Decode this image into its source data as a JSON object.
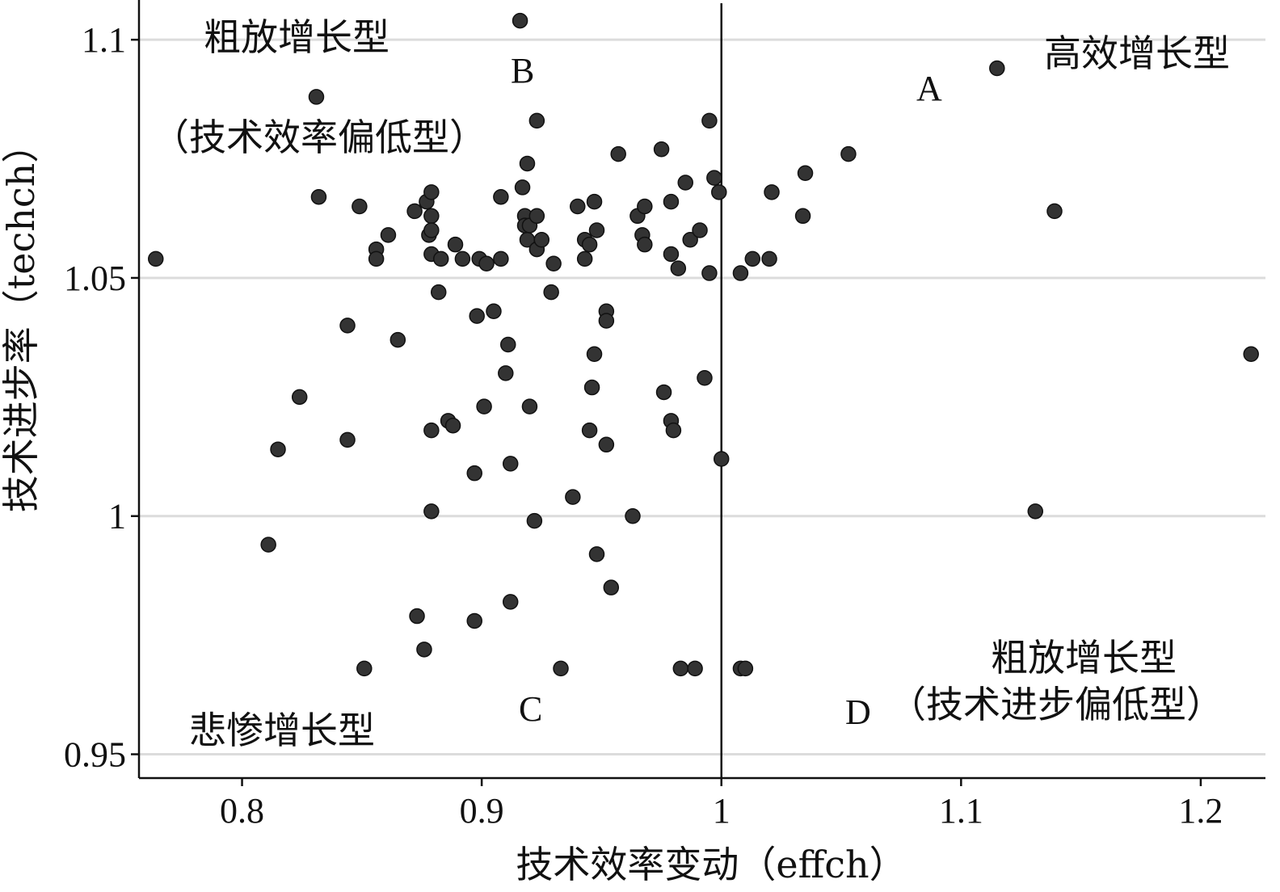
{
  "chart_data": {
    "type": "scatter",
    "xlabel": "技术效率变动（effch）",
    "ylabel": "技术进步率（techch）",
    "xlim": [
      0.757,
      1.227
    ],
    "ylim": [
      0.945,
      1.108
    ],
    "x_ticks": [
      {
        "value": 0.8,
        "label": "0.8"
      },
      {
        "value": 0.9,
        "label": "0.9"
      },
      {
        "value": 1.0,
        "label": "1"
      },
      {
        "value": 1.1,
        "label": "1.1"
      },
      {
        "value": 1.2,
        "label": "1.2"
      }
    ],
    "y_ticks": [
      {
        "value": 0.95,
        "label": "0.95"
      },
      {
        "value": 1.0,
        "label": "1"
      },
      {
        "value": 1.05,
        "label": "1.05"
      },
      {
        "value": 1.1,
        "label": "1.1"
      }
    ],
    "grid": "horizontal",
    "reference_line_x": 1.0,
    "marker_color": "#333333",
    "points": [
      {
        "x": 0.764,
        "y": 1.054
      },
      {
        "x": 0.811,
        "y": 0.994
      },
      {
        "x": 0.815,
        "y": 1.014
      },
      {
        "x": 0.824,
        "y": 1.025
      },
      {
        "x": 0.831,
        "y": 1.088
      },
      {
        "x": 0.832,
        "y": 1.067
      },
      {
        "x": 0.844,
        "y": 1.04
      },
      {
        "x": 0.844,
        "y": 1.016
      },
      {
        "x": 0.849,
        "y": 1.065
      },
      {
        "x": 0.851,
        "y": 0.968
      },
      {
        "x": 0.856,
        "y": 1.056
      },
      {
        "x": 0.856,
        "y": 1.054
      },
      {
        "x": 0.861,
        "y": 1.059
      },
      {
        "x": 0.865,
        "y": 1.037
      },
      {
        "x": 0.872,
        "y": 1.064
      },
      {
        "x": 0.873,
        "y": 0.979
      },
      {
        "x": 0.876,
        "y": 0.972
      },
      {
        "x": 0.877,
        "y": 1.066
      },
      {
        "x": 0.878,
        "y": 1.059
      },
      {
        "x": 0.879,
        "y": 1.068
      },
      {
        "x": 0.879,
        "y": 1.063
      },
      {
        "x": 0.879,
        "y": 1.06
      },
      {
        "x": 0.879,
        "y": 1.055
      },
      {
        "x": 0.879,
        "y": 1.018
      },
      {
        "x": 0.879,
        "y": 1.001
      },
      {
        "x": 0.882,
        "y": 1.047
      },
      {
        "x": 0.883,
        "y": 1.054
      },
      {
        "x": 0.886,
        "y": 1.02
      },
      {
        "x": 0.888,
        "y": 1.019
      },
      {
        "x": 0.889,
        "y": 1.057
      },
      {
        "x": 0.892,
        "y": 1.054
      },
      {
        "x": 0.897,
        "y": 1.009
      },
      {
        "x": 0.897,
        "y": 0.978
      },
      {
        "x": 0.898,
        "y": 1.042
      },
      {
        "x": 0.899,
        "y": 1.054
      },
      {
        "x": 0.901,
        "y": 1.023
      },
      {
        "x": 0.902,
        "y": 1.053
      },
      {
        "x": 0.905,
        "y": 1.043
      },
      {
        "x": 0.908,
        "y": 1.067
      },
      {
        "x": 0.908,
        "y": 1.054
      },
      {
        "x": 0.91,
        "y": 1.03
      },
      {
        "x": 0.911,
        "y": 1.036
      },
      {
        "x": 0.912,
        "y": 1.011
      },
      {
        "x": 0.912,
        "y": 0.982
      },
      {
        "x": 0.916,
        "y": 1.104
      },
      {
        "x": 0.917,
        "y": 1.069
      },
      {
        "x": 0.918,
        "y": 1.063
      },
      {
        "x": 0.918,
        "y": 1.061
      },
      {
        "x": 0.919,
        "y": 1.074
      },
      {
        "x": 0.919,
        "y": 1.058
      },
      {
        "x": 0.92,
        "y": 1.023
      },
      {
        "x": 0.92,
        "y": 1.061
      },
      {
        "x": 0.922,
        "y": 0.999
      },
      {
        "x": 0.923,
        "y": 1.063
      },
      {
        "x": 0.923,
        "y": 1.056
      },
      {
        "x": 0.923,
        "y": 1.083
      },
      {
        "x": 0.925,
        "y": 1.058
      },
      {
        "x": 0.929,
        "y": 1.047
      },
      {
        "x": 0.93,
        "y": 1.053
      },
      {
        "x": 0.933,
        "y": 0.968
      },
      {
        "x": 0.938,
        "y": 1.004
      },
      {
        "x": 0.94,
        "y": 1.065
      },
      {
        "x": 0.943,
        "y": 1.058
      },
      {
        "x": 0.943,
        "y": 1.054
      },
      {
        "x": 0.945,
        "y": 1.057
      },
      {
        "x": 0.945,
        "y": 1.018
      },
      {
        "x": 0.946,
        "y": 1.027
      },
      {
        "x": 0.947,
        "y": 1.034
      },
      {
        "x": 0.947,
        "y": 1.066
      },
      {
        "x": 0.948,
        "y": 1.06
      },
      {
        "x": 0.948,
        "y": 0.992
      },
      {
        "x": 0.952,
        "y": 1.043
      },
      {
        "x": 0.952,
        "y": 1.041
      },
      {
        "x": 0.952,
        "y": 1.015
      },
      {
        "x": 0.954,
        "y": 0.985
      },
      {
        "x": 0.957,
        "y": 1.076
      },
      {
        "x": 0.963,
        "y": 1.0
      },
      {
        "x": 0.965,
        "y": 1.063
      },
      {
        "x": 0.967,
        "y": 1.059
      },
      {
        "x": 0.968,
        "y": 1.065
      },
      {
        "x": 0.968,
        "y": 1.057
      },
      {
        "x": 0.975,
        "y": 1.077
      },
      {
        "x": 0.976,
        "y": 1.026
      },
      {
        "x": 0.979,
        "y": 1.066
      },
      {
        "x": 0.979,
        "y": 1.055
      },
      {
        "x": 0.979,
        "y": 1.02
      },
      {
        "x": 0.98,
        "y": 1.018
      },
      {
        "x": 0.982,
        "y": 1.052
      },
      {
        "x": 0.983,
        "y": 0.968
      },
      {
        "x": 0.985,
        "y": 1.07
      },
      {
        "x": 0.987,
        "y": 1.058
      },
      {
        "x": 0.989,
        "y": 0.968
      },
      {
        "x": 0.991,
        "y": 1.06
      },
      {
        "x": 0.993,
        "y": 1.029
      },
      {
        "x": 0.995,
        "y": 1.083
      },
      {
        "x": 0.995,
        "y": 1.051
      },
      {
        "x": 0.997,
        "y": 1.071
      },
      {
        "x": 0.999,
        "y": 1.068
      },
      {
        "x": 1.0,
        "y": 1.012
      },
      {
        "x": 1.008,
        "y": 0.968
      },
      {
        "x": 1.008,
        "y": 1.051
      },
      {
        "x": 1.01,
        "y": 0.968
      },
      {
        "x": 1.013,
        "y": 1.054
      },
      {
        "x": 1.02,
        "y": 1.054
      },
      {
        "x": 1.021,
        "y": 1.068
      },
      {
        "x": 1.034,
        "y": 1.063
      },
      {
        "x": 1.035,
        "y": 1.072
      },
      {
        "x": 1.053,
        "y": 1.076
      },
      {
        "x": 1.115,
        "y": 1.094
      },
      {
        "x": 1.131,
        "y": 1.001
      },
      {
        "x": 1.139,
        "y": 1.064
      },
      {
        "x": 1.221,
        "y": 1.034
      }
    ],
    "annotations": {
      "q_b_title": "粗放增长型",
      "q_b_sub": "（技术效率偏低型）",
      "q_b_letter": "B",
      "q_a_title": "高效增长型",
      "q_a_letter": "A",
      "q_c_title": "悲惨增长型",
      "q_c_letter": "C",
      "q_d_title": "粗放增长型",
      "q_d_sub": "（技术进步偏低型）",
      "q_d_letter": "D"
    }
  }
}
